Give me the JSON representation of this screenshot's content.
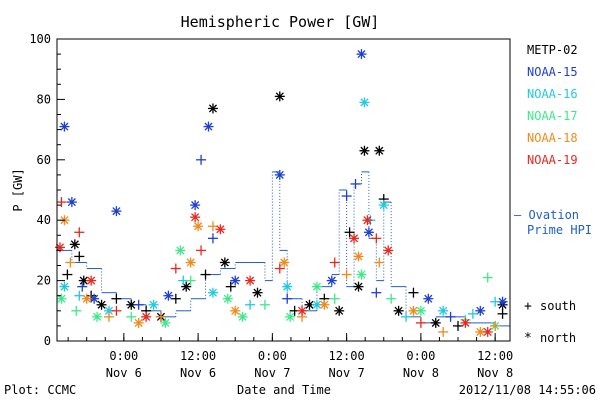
{
  "chart_data": {
    "type": "scatter",
    "title": "Hemispheric Power [GW]",
    "xlabel": "Date and Time",
    "ylabel": "P [GW]",
    "ylim": [
      0,
      100
    ],
    "yticks": [
      0,
      20,
      40,
      60,
      80,
      100
    ],
    "xlim": [
      -0.45,
      2.6
    ],
    "xticks": [
      {
        "x": 0.0,
        "time": "0:00",
        "date": "Nov 6"
      },
      {
        "x": 0.5,
        "time": "12:00",
        "date": "Nov 6"
      },
      {
        "x": 1.0,
        "time": "0:00",
        "date": "Nov 7"
      },
      {
        "x": 1.5,
        "time": "12:00",
        "date": "Nov 7"
      },
      {
        "x": 2.0,
        "time": "0:00",
        "date": "Nov 8"
      },
      {
        "x": 2.5,
        "time": "12:00",
        "date": "Nov 8"
      }
    ],
    "legend": {
      "placement": "right",
      "entries": [
        {
          "name": "METP-02",
          "color": "#000000"
        },
        {
          "name": "NOAA-15",
          "color": "#1f3fd0"
        },
        {
          "name": "NOAA-16",
          "color": "#22c8e0"
        },
        {
          "name": "NOAA-17",
          "color": "#3ee88a"
        },
        {
          "name": "NOAA-18",
          "color": "#f08a1a"
        },
        {
          "name": "NOAA-19",
          "color": "#e8281e"
        }
      ],
      "ovation": {
        "line1": "– Ovation",
        "line2": "Prime HPI",
        "color": "#1f5fc8"
      },
      "markers": [
        {
          "symbol": "+",
          "label": "south"
        },
        {
          "symbol": "*",
          "label": "north"
        }
      ]
    },
    "series": [
      {
        "name": "METP-02",
        "color": "#000000",
        "points": [
          [
            -0.38,
            22,
            "+"
          ],
          [
            -0.33,
            32,
            "*"
          ],
          [
            -0.3,
            28,
            "+"
          ],
          [
            -0.27,
            20,
            "*"
          ],
          [
            -0.22,
            15,
            "+"
          ],
          [
            -0.15,
            12,
            "*"
          ],
          [
            -0.05,
            14,
            "+"
          ],
          [
            0.05,
            12,
            "*"
          ],
          [
            0.15,
            10,
            "+"
          ],
          [
            0.25,
            8,
            "*"
          ],
          [
            0.35,
            14,
            "+"
          ],
          [
            0.42,
            18,
            "*"
          ],
          [
            0.55,
            22,
            "+"
          ],
          [
            0.6,
            77,
            "*"
          ],
          [
            0.68,
            26,
            "*"
          ],
          [
            0.72,
            18,
            "+"
          ],
          [
            0.9,
            16,
            "*"
          ],
          [
            1.05,
            81,
            "*"
          ],
          [
            1.15,
            10,
            "+"
          ],
          [
            1.25,
            12,
            "*"
          ],
          [
            1.35,
            14,
            "+"
          ],
          [
            1.45,
            10,
            "*"
          ],
          [
            1.52,
            36,
            "+"
          ],
          [
            1.58,
            18,
            "*"
          ],
          [
            1.62,
            63,
            "*"
          ],
          [
            1.72,
            63,
            "*"
          ],
          [
            1.75,
            47,
            "+"
          ],
          [
            1.85,
            10,
            "*"
          ],
          [
            1.95,
            16,
            "+"
          ],
          [
            2.1,
            6,
            "*"
          ],
          [
            2.25,
            5,
            "+"
          ],
          [
            2.55,
            12,
            "*"
          ],
          [
            2.55,
            9,
            "+"
          ]
        ]
      },
      {
        "name": "NOAA-15",
        "color": "#1f3fd0",
        "points": [
          [
            -0.35,
            46,
            "*"
          ],
          [
            -0.4,
            71,
            "*"
          ],
          [
            -0.28,
            18,
            "+"
          ],
          [
            -0.2,
            14,
            "*"
          ],
          [
            -0.05,
            43,
            "*"
          ],
          [
            0.1,
            12,
            "+"
          ],
          [
            0.3,
            15,
            "*"
          ],
          [
            0.48,
            45,
            "*"
          ],
          [
            0.52,
            60,
            "+"
          ],
          [
            0.57,
            71,
            "*"
          ],
          [
            0.6,
            34,
            "+"
          ],
          [
            0.75,
            20,
            "*"
          ],
          [
            1.05,
            55,
            "*"
          ],
          [
            1.1,
            14,
            "+"
          ],
          [
            1.4,
            20,
            "*"
          ],
          [
            1.5,
            48,
            "+"
          ],
          [
            1.56,
            52,
            "+"
          ],
          [
            1.6,
            95,
            "*"
          ],
          [
            1.65,
            36,
            "*"
          ],
          [
            1.7,
            16,
            "+"
          ],
          [
            2.05,
            14,
            "*"
          ],
          [
            2.2,
            8,
            "+"
          ],
          [
            2.4,
            10,
            "*"
          ],
          [
            2.55,
            13,
            "*"
          ]
        ]
      },
      {
        "name": "NOAA-16",
        "color": "#22c8e0",
        "points": [
          [
            -0.4,
            18,
            "*"
          ],
          [
            -0.3,
            15,
            "+"
          ],
          [
            -0.1,
            10,
            "*"
          ],
          [
            0.2,
            12,
            "*"
          ],
          [
            0.4,
            20,
            "+"
          ],
          [
            0.6,
            16,
            "*"
          ],
          [
            0.85,
            12,
            "+"
          ],
          [
            1.1,
            18,
            "*"
          ],
          [
            1.3,
            12,
            "*"
          ],
          [
            1.62,
            79,
            "*"
          ],
          [
            1.66,
            40,
            "+"
          ],
          [
            1.75,
            45,
            "*"
          ],
          [
            1.9,
            8,
            "+"
          ],
          [
            2.15,
            10,
            "*"
          ],
          [
            2.35,
            9,
            "+"
          ],
          [
            2.5,
            13,
            "+"
          ]
        ]
      },
      {
        "name": "NOAA-17",
        "color": "#3ee88a",
        "points": [
          [
            -0.42,
            14,
            "*"
          ],
          [
            -0.32,
            10,
            "+"
          ],
          [
            -0.18,
            8,
            "*"
          ],
          [
            0.05,
            8,
            "+"
          ],
          [
            0.28,
            6,
            "*"
          ],
          [
            0.38,
            30,
            "*"
          ],
          [
            0.45,
            20,
            "+"
          ],
          [
            0.7,
            14,
            "*"
          ],
          [
            0.8,
            8,
            "*"
          ],
          [
            0.95,
            12,
            "+"
          ],
          [
            1.12,
            8,
            "*"
          ],
          [
            1.3,
            18,
            "*"
          ],
          [
            1.42,
            14,
            "+"
          ],
          [
            1.6,
            22,
            "*"
          ],
          [
            1.8,
            14,
            "+"
          ],
          [
            2.0,
            10,
            "*"
          ],
          [
            2.3,
            7,
            "+"
          ],
          [
            2.45,
            21,
            "+"
          ],
          [
            2.5,
            5,
            "*"
          ]
        ]
      },
      {
        "name": "NOAA-18",
        "color": "#f08a1a",
        "points": [
          [
            -0.4,
            40,
            "*"
          ],
          [
            -0.36,
            26,
            "+"
          ],
          [
            -0.25,
            14,
            "*"
          ],
          [
            -0.1,
            8,
            "+"
          ],
          [
            0.1,
            6,
            "*"
          ],
          [
            0.25,
            8,
            "+"
          ],
          [
            0.45,
            26,
            "*"
          ],
          [
            0.5,
            38,
            "*"
          ],
          [
            0.6,
            38,
            "+"
          ],
          [
            0.75,
            10,
            "*"
          ],
          [
            1.08,
            26,
            "*"
          ],
          [
            1.2,
            8,
            "+"
          ],
          [
            1.35,
            12,
            "*"
          ],
          [
            1.5,
            22,
            "+"
          ],
          [
            1.58,
            28,
            "*"
          ],
          [
            1.72,
            26,
            "+"
          ],
          [
            1.95,
            10,
            "*"
          ],
          [
            2.15,
            3,
            "+"
          ],
          [
            2.4,
            3,
            "*"
          ],
          [
            2.5,
            5,
            "+"
          ]
        ]
      },
      {
        "name": "NOAA-19",
        "color": "#e8281e",
        "points": [
          [
            -0.42,
            46,
            "+"
          ],
          [
            -0.43,
            31,
            "*"
          ],
          [
            -0.3,
            36,
            "+"
          ],
          [
            -0.22,
            20,
            "*"
          ],
          [
            -0.05,
            10,
            "+"
          ],
          [
            0.15,
            8,
            "*"
          ],
          [
            0.35,
            24,
            "+"
          ],
          [
            0.48,
            41,
            "*"
          ],
          [
            0.52,
            30,
            "+"
          ],
          [
            0.65,
            37,
            "*"
          ],
          [
            0.85,
            20,
            "*"
          ],
          [
            1.05,
            24,
            "+"
          ],
          [
            1.2,
            10,
            "*"
          ],
          [
            1.42,
            26,
            "+"
          ],
          [
            1.55,
            34,
            "*"
          ],
          [
            1.64,
            40,
            "*"
          ],
          [
            1.7,
            34,
            "+"
          ],
          [
            1.78,
            30,
            "*"
          ],
          [
            2.0,
            6,
            "+"
          ],
          [
            2.3,
            6,
            "*"
          ],
          [
            2.45,
            3,
            "*"
          ]
        ]
      }
    ],
    "ovation_hpi": {
      "name": "Ovation Prime HPI",
      "color": "#1f5fc8",
      "x": [
        -0.45,
        -0.35,
        -0.25,
        -0.15,
        -0.05,
        0.05,
        0.15,
        0.25,
        0.35,
        0.45,
        0.55,
        0.65,
        0.75,
        0.85,
        0.95,
        1.0,
        1.05,
        1.1,
        1.2,
        1.3,
        1.4,
        1.45,
        1.5,
        1.55,
        1.6,
        1.65,
        1.7,
        1.75,
        1.8,
        1.9,
        2.0,
        2.1,
        2.2,
        2.3,
        2.4,
        2.5,
        2.6
      ],
      "y": [
        30,
        26,
        24,
        16,
        14,
        12,
        10,
        8,
        10,
        14,
        22,
        24,
        26,
        26,
        20,
        56,
        30,
        14,
        10,
        18,
        22,
        50,
        18,
        52,
        56,
        34,
        20,
        46,
        18,
        8,
        6,
        8,
        8,
        6,
        6,
        5,
        8
      ]
    }
  },
  "footer": {
    "plot_credit": "Plot: CCMC",
    "timestamp": "2012/11/08 14:55:06"
  }
}
